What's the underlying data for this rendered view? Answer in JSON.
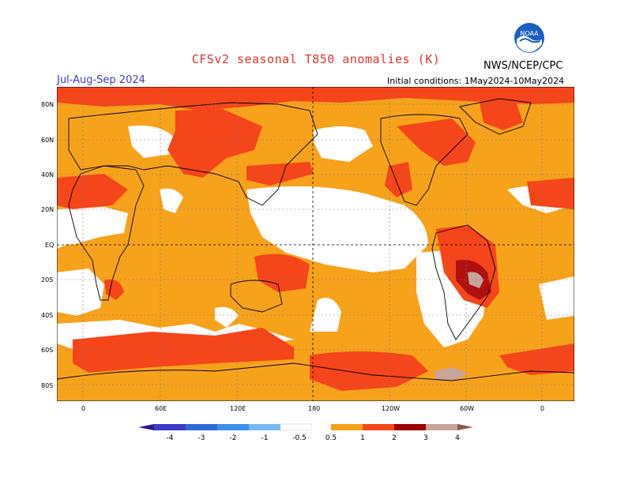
{
  "header": {
    "title": "CFSv2 seasonal T850 anomalies (K)",
    "agency": "NWS/NCEP/CPC",
    "period": "Jul-Aug-Sep 2024",
    "initial_conditions": "Initial conditions: 1May2024-10May2024",
    "logo_text": "NOAA"
  },
  "map": {
    "lat_labels": [
      "80N",
      "60N",
      "40N",
      "20N",
      "EQ",
      "20S",
      "40S",
      "60S",
      "80S"
    ],
    "lon_labels": [
      "0",
      "60E",
      "120E",
      "180",
      "120W",
      "60W",
      "0"
    ]
  },
  "legend": {
    "labels": [
      "-4",
      "-3",
      "-2",
      "-1",
      "-0.5",
      "0.5",
      "1",
      "2",
      "3",
      "4"
    ],
    "colors": {
      "below_minus4": "#2a1a8a",
      "minus4_minus3": "#3b3bc8",
      "minus3_minus2": "#2f6ad6",
      "minus2_minus1": "#3a92e8",
      "minus1_minus05": "#78b8f0",
      "neutral": "#ffffff",
      "p05_1": "#f7a21b",
      "p1_2": "#f5451a",
      "p2_3": "#b01010",
      "p3_4": "#9c0000",
      "p4_plus": "#c8a49a",
      "above4": "#8a5a4a"
    }
  }
}
